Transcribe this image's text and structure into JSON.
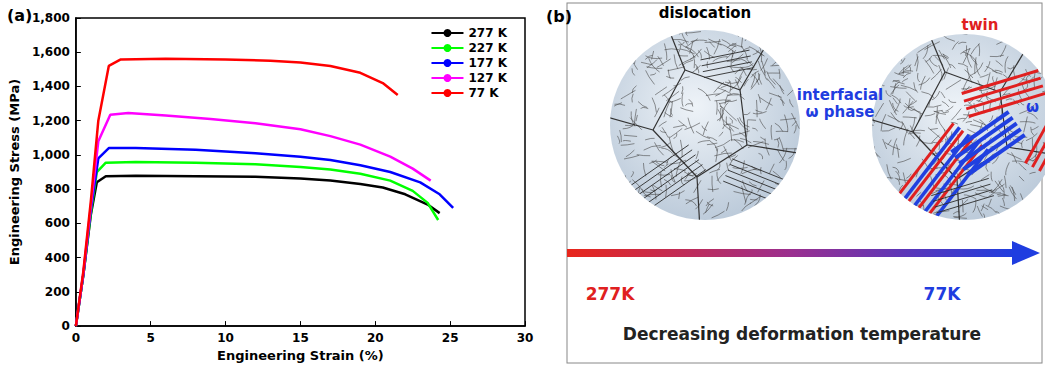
{
  "chart_data": {
    "type": "line",
    "panel": "(a)",
    "x_label": "Engineering Strain (%)",
    "y_label": "Engineering Stress (MPa)",
    "xlim": [
      0,
      30
    ],
    "xticks": [
      0,
      5,
      10,
      15,
      20,
      25,
      30
    ],
    "ylim": [
      0,
      1800
    ],
    "yticks": [
      0,
      200,
      400,
      600,
      800,
      1000,
      1200,
      1400,
      1600,
      1800
    ],
    "grid": false,
    "legend": "upper right",
    "series": [
      {
        "name": "277 K",
        "color": "#000000",
        "x": [
          0,
          0.5,
          1.0,
          1.4,
          2,
          4,
          8,
          12,
          15,
          17,
          19,
          20.5,
          22,
          23.5,
          24.3
        ],
        "values": [
          0,
          300,
          650,
          840,
          875,
          878,
          876,
          872,
          862,
          850,
          830,
          810,
          770,
          710,
          660
        ]
      },
      {
        "name": "227 K",
        "color": "#00ff00",
        "x": [
          0,
          0.5,
          1.0,
          1.4,
          2,
          4,
          8,
          12,
          15,
          17,
          19,
          21,
          22.5,
          23.5,
          24.2
        ],
        "values": [
          0,
          300,
          660,
          900,
          955,
          958,
          955,
          945,
          930,
          915,
          890,
          850,
          790,
          720,
          620
        ]
      },
      {
        "name": "177 K",
        "color": "#0000ff",
        "x": [
          0,
          0.5,
          1.0,
          1.5,
          2.2,
          4,
          8,
          12,
          15,
          17,
          19,
          21,
          23,
          24.3,
          25.2
        ],
        "values": [
          0,
          300,
          680,
          980,
          1040,
          1040,
          1030,
          1010,
          990,
          970,
          940,
          900,
          840,
          770,
          690
        ]
      },
      {
        "name": "127 K",
        "color": "#ff00ff",
        "x": [
          0,
          0.5,
          1.0,
          1.5,
          2.3,
          3.5,
          6,
          9,
          12,
          15,
          17,
          19,
          21,
          22.5,
          23.7
        ],
        "values": [
          0,
          310,
          700,
          1080,
          1235,
          1245,
          1230,
          1210,
          1185,
          1150,
          1110,
          1060,
          990,
          920,
          850
        ]
      },
      {
        "name": "77 K",
        "color": "#ff0000",
        "x": [
          0,
          0.5,
          1.0,
          1.5,
          2.2,
          3,
          6,
          10,
          13,
          15,
          17,
          19,
          20.5,
          21.5
        ],
        "values": [
          0,
          320,
          730,
          1200,
          1520,
          1558,
          1562,
          1558,
          1550,
          1540,
          1520,
          1480,
          1420,
          1350
        ]
      }
    ]
  },
  "diagram": {
    "panel": "(b)",
    "left_label": "dislocation",
    "right_labels": {
      "interfacial": [
        "interfacial",
        "ω phase"
      ],
      "twin": "twin",
      "omega": "ω"
    },
    "arrow": {
      "start": "277K",
      "end": "77K",
      "caption": "Decreasing deformation temperature"
    }
  }
}
